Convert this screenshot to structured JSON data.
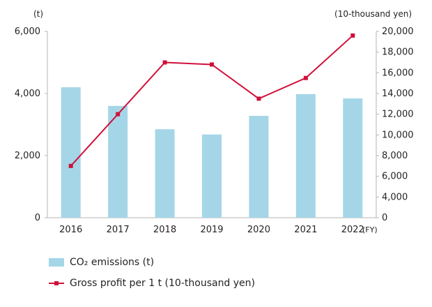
{
  "chart_data": {
    "type": "bar+line",
    "categories": [
      "2016",
      "2017",
      "2018",
      "2019",
      "2020",
      "2021",
      "2022"
    ],
    "x_unit": "(FY)",
    "left_axis": {
      "unit": "(t)",
      "ticks": [
        "0",
        "2,000",
        "4,000",
        "6,000"
      ],
      "ylim": [
        0,
        6000
      ]
    },
    "right_axis": {
      "unit": "(10-thousand yen)",
      "ticks": [
        "0",
        "4,000",
        "6,000",
        "8,000",
        "10,000",
        "12,000",
        "14,000",
        "16,000",
        "18,000",
        "20,000"
      ],
      "ylim": [
        2000,
        20000
      ]
    },
    "series": [
      {
        "name": "CO₂ emissions (t)",
        "type": "bar",
        "axis": "left",
        "color": "#a5d6e8",
        "values": [
          4200,
          3600,
          2850,
          2680,
          3280,
          3980,
          3840
        ]
      },
      {
        "name": "Gross profit per 1 t (10-thousand yen)",
        "type": "line",
        "axis": "right",
        "color": "#d0103a",
        "values": [
          7000,
          12000,
          17000,
          16800,
          13500,
          15500,
          19600
        ]
      }
    ],
    "grid": false,
    "legend_position": "bottom-left"
  }
}
